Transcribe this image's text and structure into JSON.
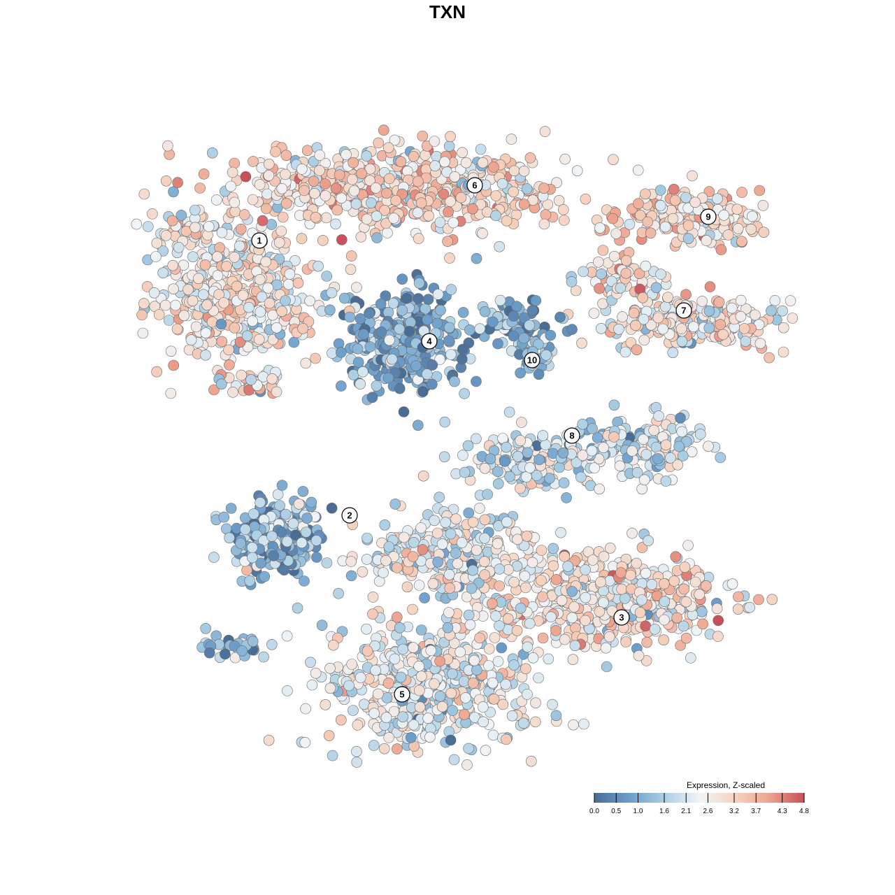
{
  "title": "TXN",
  "chart_data": {
    "type": "scatter",
    "title": "TXN",
    "legend": {
      "title": "Expression, Z-scaled",
      "placement": "bottom-right",
      "ticks": [
        0.0,
        0.5,
        1.0,
        1.6,
        2.1,
        2.6,
        3.2,
        3.7,
        4.3,
        4.8
      ],
      "tick_labels": [
        "0.0",
        "0.5",
        "1.0",
        "1.6",
        "2.1",
        "2.6",
        "3.2",
        "3.7",
        "4.3",
        "4.8"
      ],
      "range": [
        0.0,
        4.8
      ]
    },
    "colors": [
      "#4a6d95",
      "#6c9fcc",
      "#a9cde3",
      "#f0f4f7",
      "#f6d3c0",
      "#eea48f",
      "#c8505a"
    ],
    "grid": false,
    "clusters": [
      {
        "label": "1",
        "mean_expression": 2.7
      },
      {
        "label": "2",
        "mean_expression": 1.2
      },
      {
        "label": "3",
        "mean_expression": 2.8
      },
      {
        "label": "4",
        "mean_expression": 0.9
      },
      {
        "label": "5",
        "mean_expression": 2.3
      },
      {
        "label": "6",
        "mean_expression": 3.0
      },
      {
        "label": "7",
        "mean_expression": 2.8
      },
      {
        "label": "8",
        "mean_expression": 2.0
      },
      {
        "label": "9",
        "mean_expression": 3.0
      },
      {
        "label": "10",
        "mean_expression": 1.3
      }
    ]
  }
}
